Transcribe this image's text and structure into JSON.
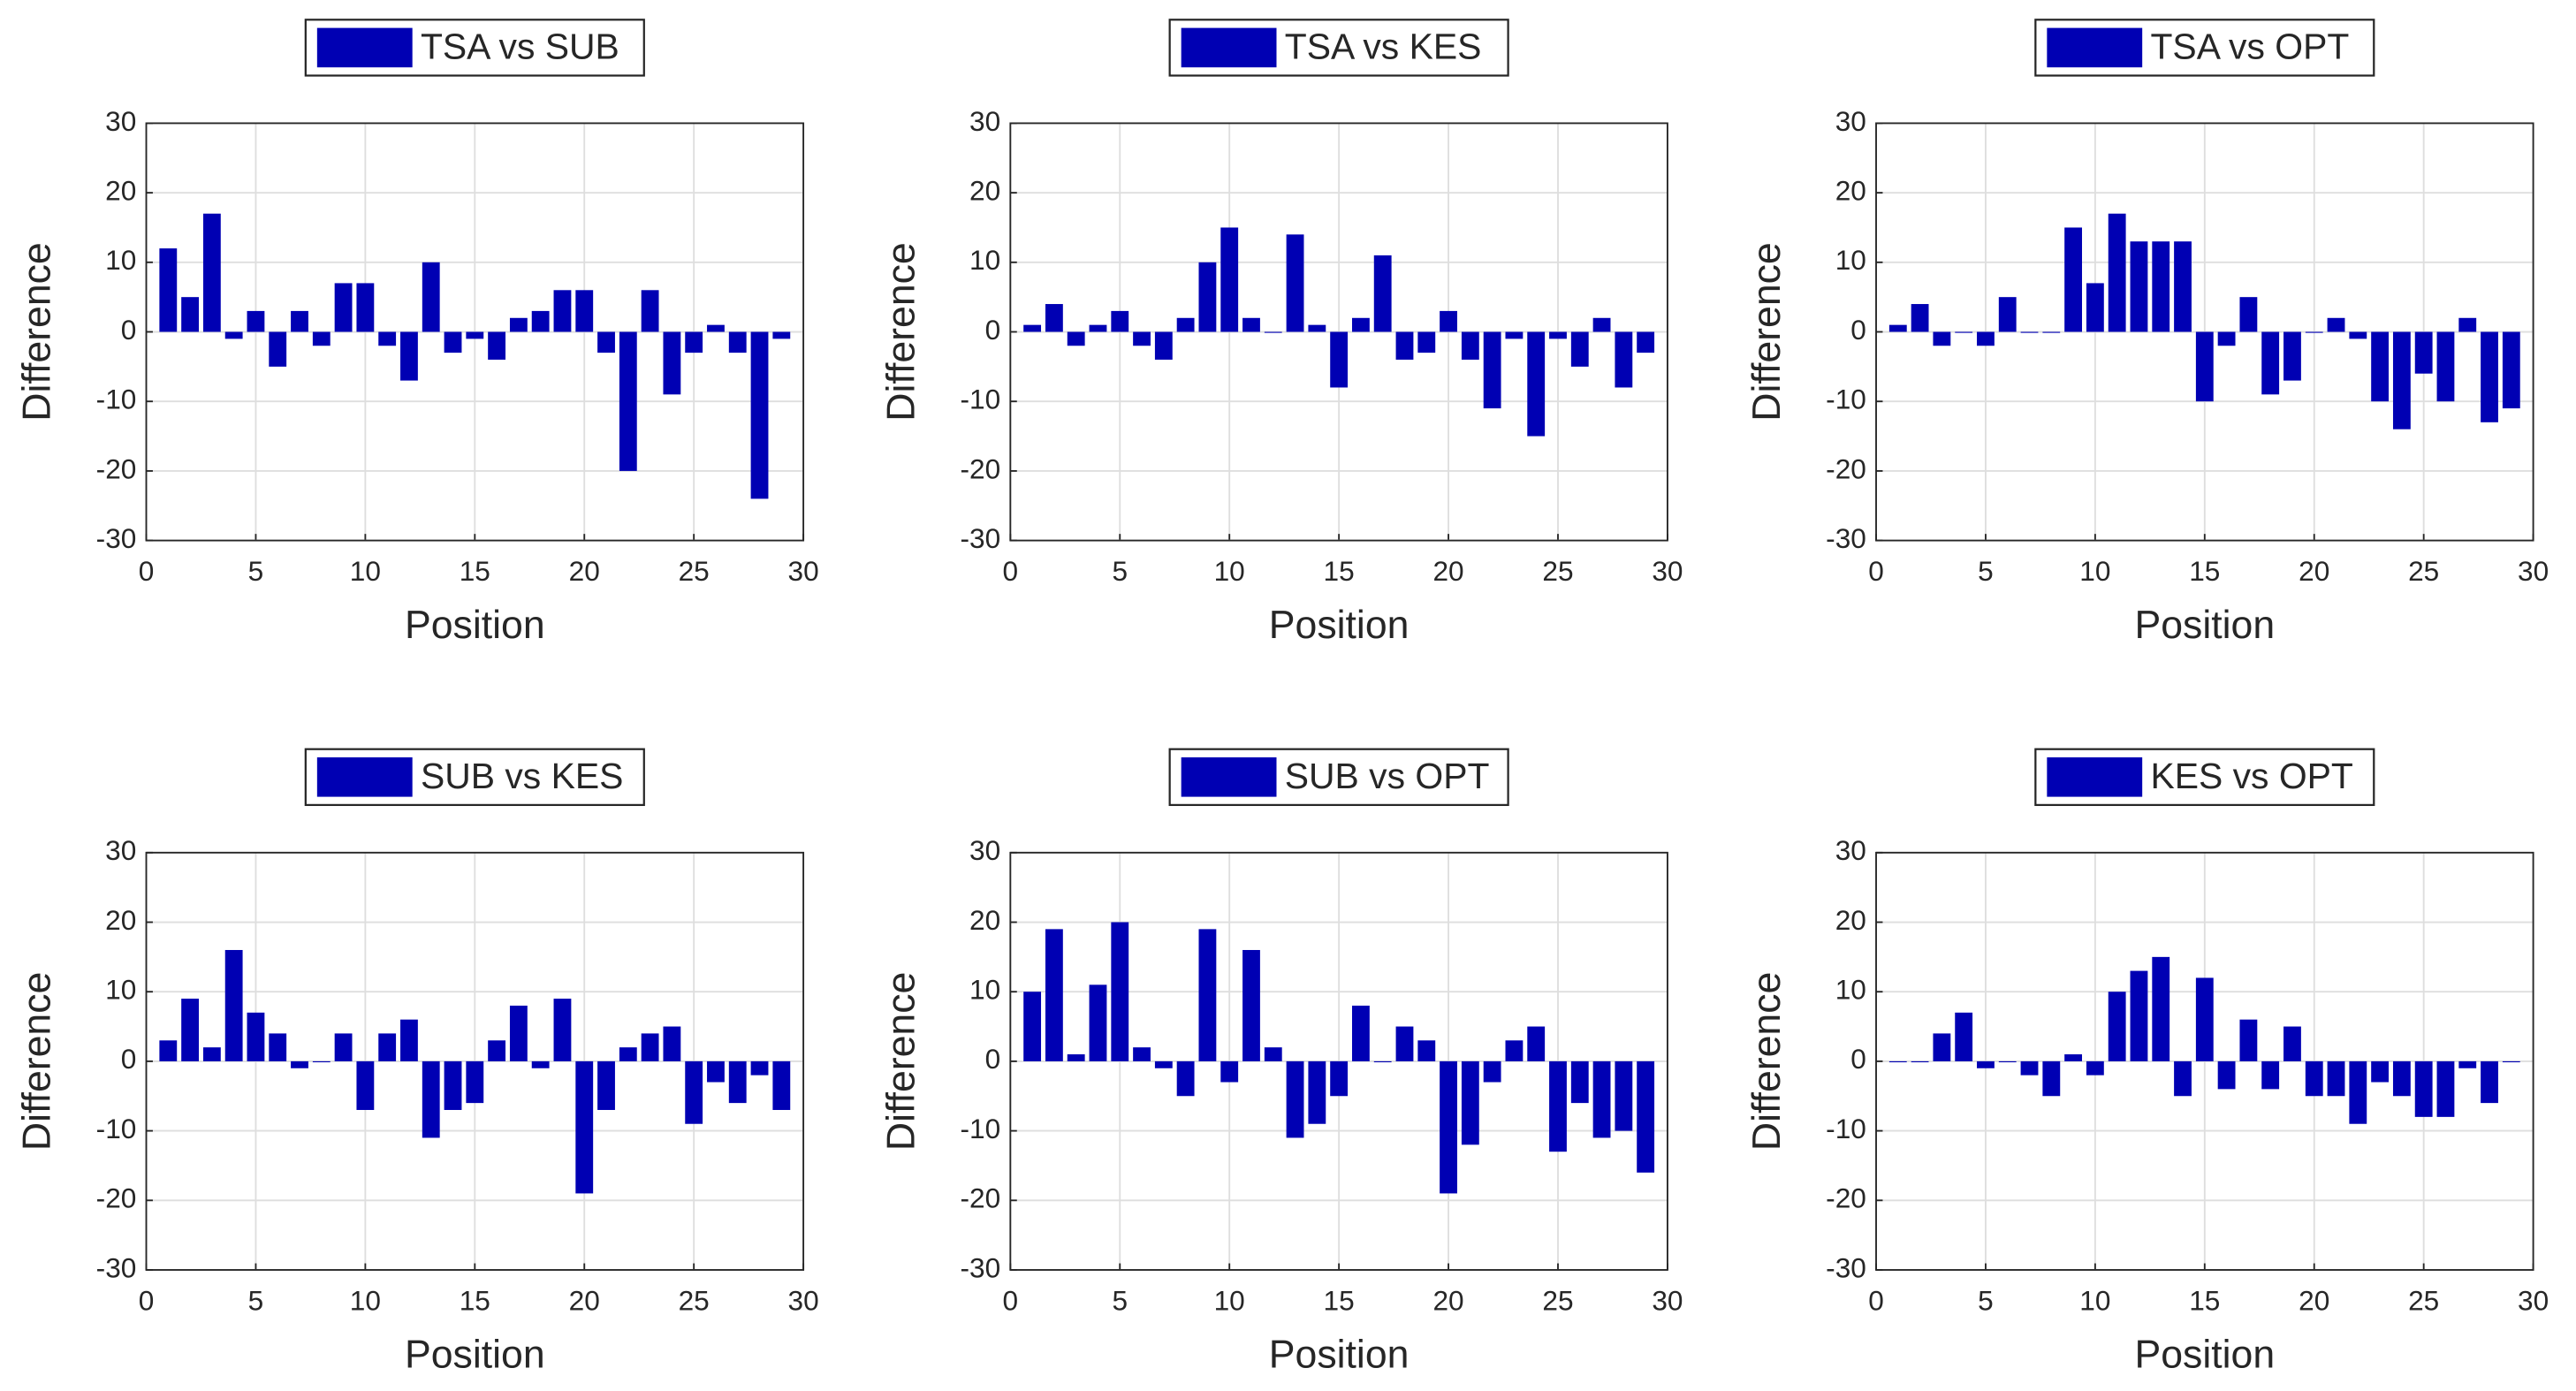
{
  "chart_data": [
    {
      "type": "bar",
      "series": [
        {
          "name": "TSA vs SUB",
          "color": "#0000b3",
          "values": [
            12,
            5,
            17,
            -1,
            3,
            -5,
            3,
            -2,
            7,
            7,
            -2,
            -7,
            10,
            -3,
            -1,
            -4,
            2,
            3,
            6,
            6,
            -3,
            -20,
            6,
            -9,
            -3,
            1,
            -3,
            -24,
            -1
          ]
        }
      ],
      "x": [
        1,
        2,
        3,
        4,
        5,
        6,
        7,
        8,
        9,
        10,
        11,
        12,
        13,
        14,
        15,
        16,
        17,
        18,
        19,
        20,
        21,
        22,
        23,
        24,
        25,
        26,
        27,
        28,
        29
      ],
      "xlim": [
        0,
        30
      ],
      "ylim": [
        -30,
        30
      ],
      "xticks": [
        0,
        5,
        10,
        15,
        20,
        25,
        30
      ],
      "yticks": [
        -30,
        -20,
        -10,
        0,
        10,
        20,
        30
      ],
      "xlabel": "Position",
      "ylabel": "Difference",
      "grid": true
    },
    {
      "type": "bar",
      "series": [
        {
          "name": "TSA vs KES",
          "color": "#0000b3",
          "values": [
            1,
            4,
            -2,
            1,
            3,
            -2,
            -4,
            2,
            10,
            15,
            2,
            0,
            14,
            1,
            -8,
            2,
            11,
            -4,
            -3,
            3,
            -4,
            -11,
            -1,
            -15,
            -1,
            -5,
            2,
            -8,
            -3
          ]
        }
      ],
      "x": [
        1,
        2,
        3,
        4,
        5,
        6,
        7,
        8,
        9,
        10,
        11,
        12,
        13,
        14,
        15,
        16,
        17,
        18,
        19,
        20,
        21,
        22,
        23,
        24,
        25,
        26,
        27,
        28,
        29
      ],
      "xlim": [
        0,
        30
      ],
      "ylim": [
        -30,
        30
      ],
      "xticks": [
        0,
        5,
        10,
        15,
        20,
        25,
        30
      ],
      "yticks": [
        -30,
        -20,
        -10,
        0,
        10,
        20,
        30
      ],
      "xlabel": "Position",
      "ylabel": "Difference",
      "grid": true
    },
    {
      "type": "bar",
      "series": [
        {
          "name": "TSA vs OPT",
          "color": "#0000b3",
          "values": [
            1,
            4,
            -2,
            0,
            -2,
            5,
            0,
            0,
            15,
            7,
            17,
            13,
            13,
            13,
            -10,
            -2,
            5,
            -9,
            -7,
            0,
            2,
            -1,
            -10,
            -14,
            -6,
            -10,
            2,
            -13,
            -11
          ]
        }
      ],
      "x": [
        1,
        2,
        3,
        4,
        5,
        6,
        7,
        8,
        9,
        10,
        11,
        12,
        13,
        14,
        15,
        16,
        17,
        18,
        19,
        20,
        21,
        22,
        23,
        24,
        25,
        26,
        27,
        28,
        29
      ],
      "xlim": [
        0,
        30
      ],
      "ylim": [
        -30,
        30
      ],
      "xticks": [
        0,
        5,
        10,
        15,
        20,
        25,
        30
      ],
      "yticks": [
        -30,
        -20,
        -10,
        0,
        10,
        20,
        30
      ],
      "xlabel": "Position",
      "ylabel": "Difference",
      "grid": true
    },
    {
      "type": "bar",
      "series": [
        {
          "name": "SUB vs KES",
          "color": "#0000b3",
          "values": [
            3,
            9,
            2,
            16,
            7,
            4,
            -1,
            0,
            4,
            -7,
            4,
            6,
            -11,
            -7,
            -6,
            3,
            8,
            -1,
            9,
            -19,
            -7,
            2,
            4,
            5,
            -9,
            -3,
            -6,
            -2,
            -7
          ]
        }
      ],
      "x": [
        1,
        2,
        3,
        4,
        5,
        6,
        7,
        8,
        9,
        10,
        11,
        12,
        13,
        14,
        15,
        16,
        17,
        18,
        19,
        20,
        21,
        22,
        23,
        24,
        25,
        26,
        27,
        28,
        29
      ],
      "xlim": [
        0,
        30
      ],
      "ylim": [
        -30,
        30
      ],
      "xticks": [
        0,
        5,
        10,
        15,
        20,
        25,
        30
      ],
      "yticks": [
        -30,
        -20,
        -10,
        0,
        10,
        20,
        30
      ],
      "xlabel": "Position",
      "ylabel": "Difference",
      "grid": true
    },
    {
      "type": "bar",
      "series": [
        {
          "name": "SUB vs OPT",
          "color": "#0000b3",
          "values": [
            10,
            19,
            1,
            11,
            20,
            2,
            -1,
            -5,
            19,
            -3,
            16,
            2,
            -11,
            -9,
            -5,
            8,
            0,
            5,
            3,
            -19,
            -12,
            -3,
            3,
            5,
            -13,
            -6,
            -11,
            -10,
            -16
          ]
        }
      ],
      "x": [
        1,
        2,
        3,
        4,
        5,
        6,
        7,
        8,
        9,
        10,
        11,
        12,
        13,
        14,
        15,
        16,
        17,
        18,
        19,
        20,
        21,
        22,
        23,
        24,
        25,
        26,
        27,
        28,
        29
      ],
      "xlim": [
        0,
        30
      ],
      "ylim": [
        -30,
        30
      ],
      "xticks": [
        0,
        5,
        10,
        15,
        20,
        25,
        30
      ],
      "yticks": [
        -30,
        -20,
        -10,
        0,
        10,
        20,
        30
      ],
      "xlabel": "Position",
      "ylabel": "Difference",
      "grid": true
    },
    {
      "type": "bar",
      "series": [
        {
          "name": "KES vs OPT",
          "color": "#0000b3",
          "values": [
            0,
            0,
            4,
            7,
            -1,
            0,
            -2,
            -5,
            1,
            -2,
            10,
            13,
            15,
            -5,
            12,
            -4,
            6,
            -4,
            5,
            -5,
            -5,
            -9,
            -3,
            -5,
            -8,
            -8,
            -1,
            -6,
            0
          ]
        }
      ],
      "x": [
        1,
        2,
        3,
        4,
        5,
        6,
        7,
        8,
        9,
        10,
        11,
        12,
        13,
        14,
        15,
        16,
        17,
        18,
        19,
        20,
        21,
        22,
        23,
        24,
        25,
        26,
        27,
        28,
        29
      ],
      "xlim": [
        0,
        30
      ],
      "ylim": [
        -30,
        30
      ],
      "xticks": [
        0,
        5,
        10,
        15,
        20,
        25,
        30
      ],
      "yticks": [
        -30,
        -20,
        -10,
        0,
        10,
        20,
        30
      ],
      "xlabel": "Position",
      "ylabel": "Difference",
      "grid": true
    }
  ]
}
